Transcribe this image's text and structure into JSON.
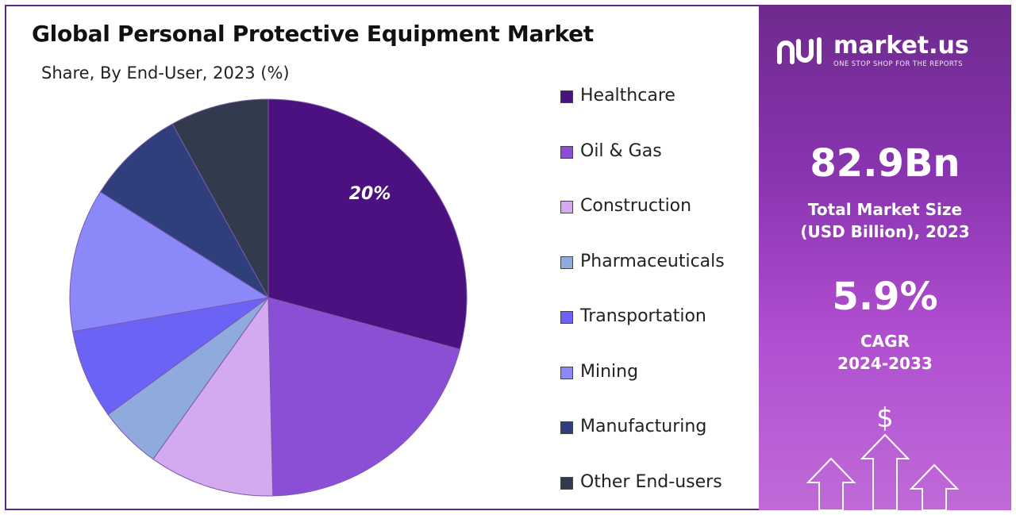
{
  "title": "Global Personal Protective Equipment Market",
  "subtitle": "Share, By End-User, 2023 (%)",
  "chart_data": {
    "type": "pie",
    "categories": [
      "Healthcare",
      "Oil & Gas",
      "Construction",
      "Pharmaceuticals",
      "Transportation",
      "Mining",
      "Manufacturing",
      "Other End-users"
    ],
    "values": [
      20,
      14,
      7,
      3.5,
      5,
      8,
      5.5,
      5.5
    ],
    "data_labels": [
      "20%",
      "",
      "",
      "",
      "",
      "",
      "",
      ""
    ],
    "colors": [
      "#4b1180",
      "#8a4fd4",
      "#d3a9f0",
      "#8faadc",
      "#6b63f5",
      "#8b88fa",
      "#2e3f7c",
      "#323a4d"
    ],
    "legend_position": "right"
  },
  "brand": {
    "name": "market.us",
    "tagline": "ONE STOP SHOP FOR THE REPORTS"
  },
  "stats": {
    "market_size": "82.9Bn",
    "market_label_line1": "Total Market Size",
    "market_label_line2": "(USD Billion), 2023",
    "cagr": "5.9%",
    "cagr_label_line1": "CAGR",
    "cagr_label_line2": "2024-2033"
  },
  "decor": {
    "dollar_symbol": "$"
  }
}
